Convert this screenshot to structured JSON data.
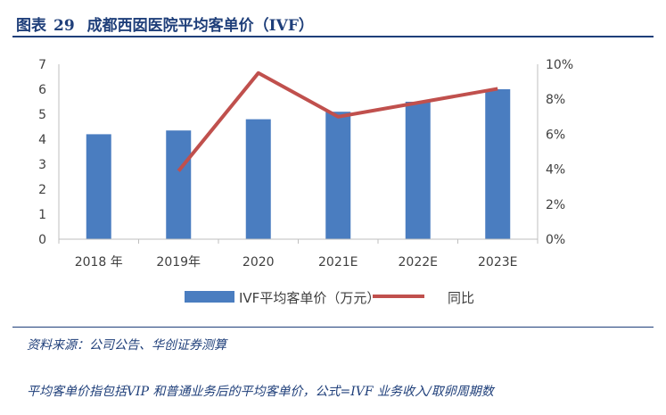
{
  "figure": {
    "label": "图表",
    "number": "29",
    "title": "成都西囡医院平均客单价（IVF）"
  },
  "chart_data": {
    "type": "bar",
    "categories": [
      "2018 年",
      "2019年",
      "2020",
      "2021E",
      "2022E",
      "2023E"
    ],
    "series": [
      {
        "name": "IVF平均客单价（万元）",
        "type": "bar",
        "axis": "left",
        "color": "#4a7dc0",
        "values": [
          4.2,
          4.35,
          4.8,
          5.1,
          5.5,
          6.0
        ]
      },
      {
        "name": "同比",
        "type": "line",
        "axis": "right",
        "color": "#c0504d",
        "values": [
          null,
          0.039,
          0.095,
          0.07,
          0.078,
          0.086
        ]
      }
    ],
    "y_left": {
      "min": 0,
      "max": 7,
      "ticks": [
        0,
        1,
        2,
        3,
        4,
        5,
        6,
        7
      ]
    },
    "y_right": {
      "min": 0,
      "max": 0.1,
      "ticks": [
        "0%",
        "2%",
        "4%",
        "6%",
        "8%",
        "10%"
      ]
    },
    "legend": "bottom",
    "grid": false
  },
  "source": "资料来源：公司公告、华创证券测算",
  "note": "平均客单价指包括VIP 和普通业务后的平均客单价，公式=IVF 业务收入/取卵周期数"
}
